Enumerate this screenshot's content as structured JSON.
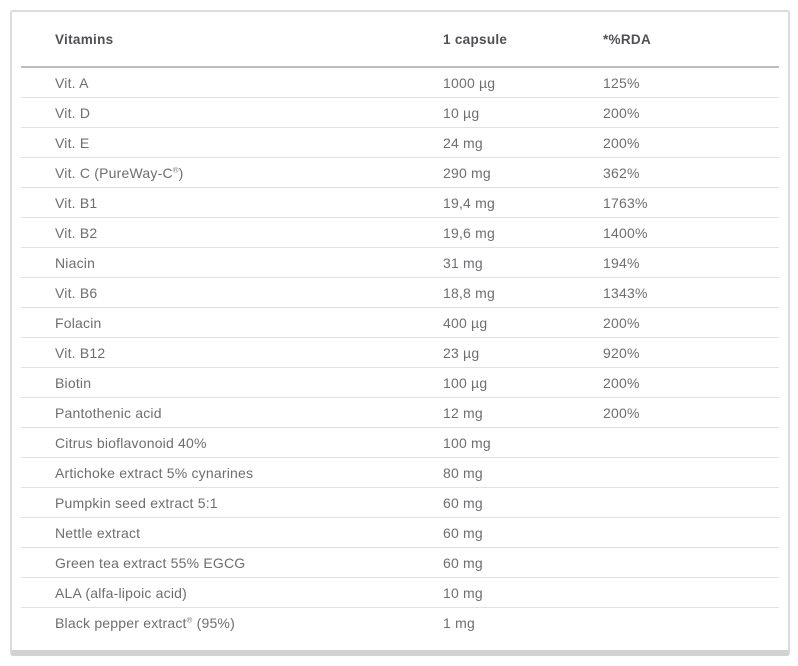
{
  "colors": {
    "card_border": "#dcdcdc",
    "card_bottom_bar": "#d2d2d2",
    "header_divider": "#bdbdbd",
    "row_divider": "#e1e1e1",
    "header_text": "#4e5054",
    "body_text": "#6d6e71",
    "background": "#ffffff"
  },
  "table": {
    "columns": [
      {
        "label": "Vitamins"
      },
      {
        "label": "1 capsule"
      },
      {
        "label": "*%RDA"
      }
    ],
    "rows": [
      {
        "name": "Vit. A",
        "amount": "1000 µg",
        "rda": "125%"
      },
      {
        "name": "Vit. D",
        "amount": "10 µg",
        "rda": "200%"
      },
      {
        "name": "Vit. E",
        "amount": "24 mg",
        "rda": "200%"
      },
      {
        "name": "Vit. C (PureWay-C®)",
        "amount": "290 mg",
        "rda": "362%"
      },
      {
        "name": "Vit. B1",
        "amount": "19,4 mg",
        "rda": "1763%"
      },
      {
        "name": "Vit. B2",
        "amount": "19,6 mg",
        "rda": "1400%"
      },
      {
        "name": "Niacin",
        "amount": "31 mg",
        "rda": "194%"
      },
      {
        "name": "Vit. B6",
        "amount": "18,8 mg",
        "rda": "1343%"
      },
      {
        "name": "Folacin",
        "amount": "400 µg",
        "rda": "200%"
      },
      {
        "name": "Vit. B12",
        "amount": "23 µg",
        "rda": "920%"
      },
      {
        "name": "Biotin",
        "amount": "100 µg",
        "rda": "200%"
      },
      {
        "name": "Pantothenic acid",
        "amount": "12 mg",
        "rda": "200%"
      },
      {
        "name": "Citrus bioflavonoid 40%",
        "amount": "100 mg",
        "rda": ""
      },
      {
        "name": "Artichoke extract 5% cynarines",
        "amount": "80 mg",
        "rda": ""
      },
      {
        "name": "Pumpkin seed extract 5:1",
        "amount": "60 mg",
        "rda": ""
      },
      {
        "name": "Nettle extract",
        "amount": "60 mg",
        "rda": ""
      },
      {
        "name": "Green tea extract 55% EGCG",
        "amount": "60 mg",
        "rda": ""
      },
      {
        "name": "ALA (alfa-lipoic acid)",
        "amount": "10 mg",
        "rda": ""
      },
      {
        "name": "Black pepper extract® (95%)",
        "amount": "1 mg",
        "rda": ""
      }
    ]
  }
}
